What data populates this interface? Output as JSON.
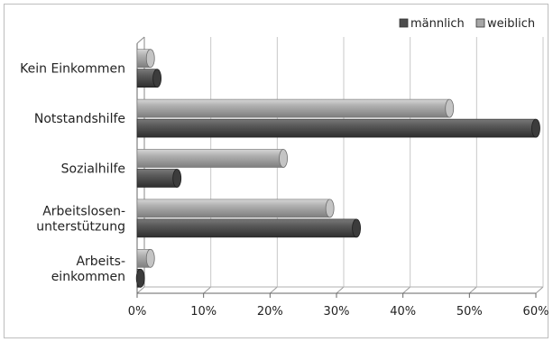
{
  "chart_data": {
    "type": "bar",
    "orientation": "horizontal",
    "style": "3d-cylinder",
    "categories": [
      "Kein Einkommen",
      "Notstandshilfe",
      "Sozialhilfe",
      "Arbeitslosen-\nunterstützung",
      "Arbeits-\neinkommen"
    ],
    "series": [
      {
        "name": "weiblich",
        "color": "#a6a6a6",
        "values": [
          2,
          47,
          22,
          29,
          2
        ]
      },
      {
        "name": "männlich",
        "color": "#4d4d4d",
        "values": [
          3,
          60,
          6,
          33,
          0.5
        ]
      }
    ],
    "xlim": [
      0,
      60
    ],
    "ticks": [
      "0%",
      "10%",
      "20%",
      "30%",
      "40%",
      "50%",
      "60%"
    ],
    "grid": true,
    "legend_position": "top-right",
    "legend_order": [
      "männlich",
      "weiblich"
    ]
  }
}
